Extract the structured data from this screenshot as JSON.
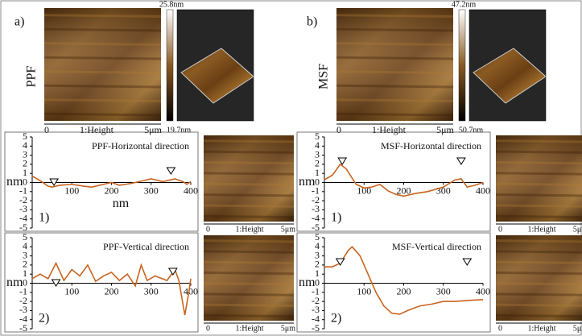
{
  "panels": [
    {
      "label": "a)",
      "sample": "PPF",
      "colorbar_max": "25.8nm",
      "colorbar_min": "19.7nm",
      "scale": {
        "start": "0",
        "name": "1:Height",
        "end": "5μm"
      }
    },
    {
      "label": "b)",
      "sample": "MSF",
      "colorbar_max": "47.2nm",
      "colorbar_min": "50.7nm",
      "scale": {
        "start": "0",
        "name": "1:Height",
        "end": "5μm"
      }
    }
  ],
  "chart_data": [
    {
      "type": "line",
      "title": "PPF-Horizontal direction",
      "annotation": "1)",
      "ylabel": "nm",
      "xlabel": "nm",
      "color": "#c8641e",
      "x": [
        0,
        20,
        40,
        50,
        70,
        100,
        130,
        150,
        180,
        200,
        220,
        250,
        280,
        300,
        330,
        360,
        380,
        390,
        400
      ],
      "y": [
        0.7,
        0.2,
        -0.4,
        -0.5,
        -0.3,
        -0.2,
        -0.4,
        -0.5,
        -0.2,
        0,
        -0.3,
        -0.1,
        0.2,
        0.4,
        0.1,
        0.4,
        0.1,
        -0.2,
        0.1
      ],
      "xlim": [
        0,
        400
      ],
      "ylim": [
        -5,
        5
      ],
      "xticks": [
        100,
        200,
        300,
        400
      ],
      "yticks": [
        -5,
        -4,
        -3,
        -2,
        -1,
        0,
        1,
        2,
        3,
        4,
        5
      ]
    },
    {
      "type": "line",
      "title": "PPF-Vertical direction",
      "annotation": "2)",
      "ylabel": "nm",
      "color": "#c8641e",
      "x": [
        0,
        20,
        40,
        60,
        80,
        100,
        120,
        140,
        160,
        180,
        200,
        220,
        240,
        260,
        275,
        290,
        310,
        340,
        360,
        370,
        385,
        395,
        400
      ],
      "y": [
        0.5,
        1,
        0.5,
        2.2,
        0.3,
        1.5,
        0.8,
        2,
        0.2,
        0.8,
        1.2,
        0.3,
        1,
        -0.3,
        2,
        0.3,
        0.8,
        0.3,
        1.5,
        0.3,
        -3.5,
        -1,
        0.5
      ],
      "xlim": [
        0,
        400
      ],
      "ylim": [
        -5,
        5
      ],
      "xticks": [
        100,
        200,
        300,
        400
      ],
      "yticks": [
        -5,
        -4,
        -3,
        -2,
        -1,
        0,
        1,
        2,
        3,
        4,
        5
      ]
    },
    {
      "type": "line",
      "title": "MSF-Horizontal direction",
      "annotation": "1)",
      "ylabel": "nm",
      "color": "#c8641e",
      "x": [
        0,
        20,
        40,
        55,
        80,
        100,
        120,
        140,
        160,
        180,
        200,
        230,
        260,
        300,
        330,
        345,
        360,
        380,
        400
      ],
      "y": [
        0.3,
        0.8,
        2,
        1.5,
        -0.2,
        -0.6,
        -0.5,
        -0.2,
        -0.9,
        -1.3,
        -1.5,
        -1.2,
        -1,
        -0.5,
        0.3,
        0.4,
        -0.5,
        -0.3,
        0
      ],
      "xlim": [
        0,
        400
      ],
      "ylim": [
        -5,
        5
      ],
      "xticks": [
        100,
        200,
        300,
        400
      ],
      "yticks": [
        -5,
        -4,
        -3,
        -2,
        -1,
        0,
        1,
        2,
        3,
        4,
        5
      ]
    },
    {
      "type": "line",
      "title": "MSF-Vertical direction",
      "annotation": "2)",
      "ylabel": "nm",
      "color": "#c8641e",
      "x": [
        0,
        20,
        40,
        60,
        70,
        90,
        110,
        130,
        150,
        170,
        190,
        210,
        240,
        270,
        300,
        330,
        360,
        400
      ],
      "y": [
        1.8,
        1.8,
        2.2,
        3.6,
        4,
        3,
        1,
        -1,
        -2.5,
        -3.3,
        -3.4,
        -3,
        -2.5,
        -2.3,
        -2,
        -2,
        -1.9,
        -1.8
      ],
      "xlim": [
        0,
        400
      ],
      "ylim": [
        -5,
        5
      ],
      "xticks": [
        100,
        200,
        300,
        400
      ],
      "yticks": [
        -5,
        -4,
        -3,
        -2,
        -1,
        0,
        1,
        2,
        3,
        4,
        5
      ]
    }
  ]
}
